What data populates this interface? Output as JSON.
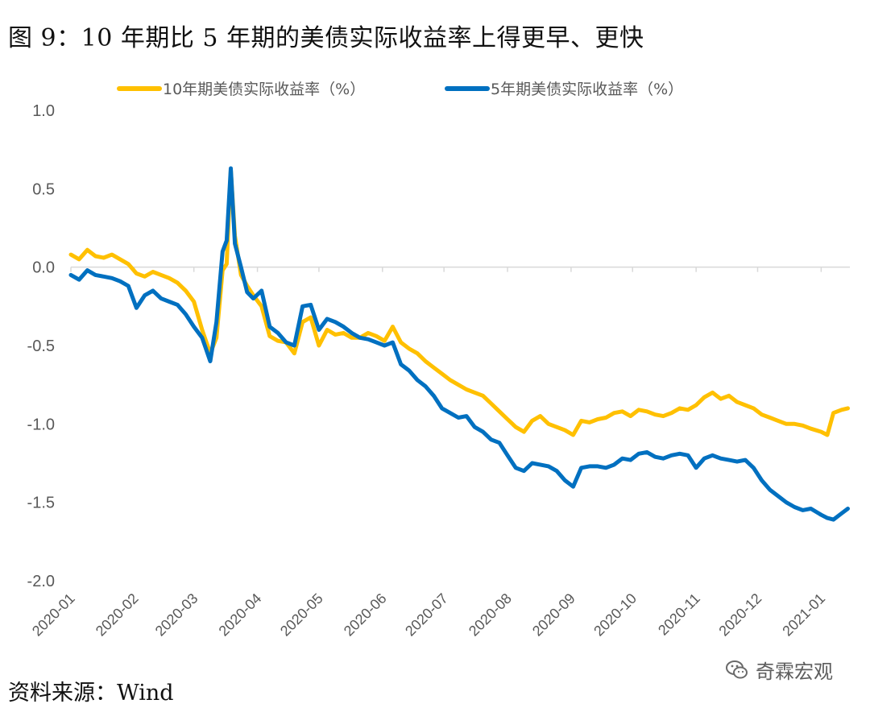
{
  "figure": {
    "title": "图 9：10 年期比 5 年期的美债实际收益率上得更早、更快",
    "source": "资料来源：Wind",
    "watermark": "奇霖宏观",
    "watermark_icon": "wechat-icon"
  },
  "chart_data": {
    "type": "line",
    "title": "",
    "xlabel": "",
    "ylabel": "",
    "ylim": [
      -2.0,
      1.0
    ],
    "yticks": [
      "1.0",
      "0.5",
      "0.0",
      "-0.5",
      "-1.0",
      "-1.5",
      "-2.0"
    ],
    "ytick_values": [
      1.0,
      0.5,
      0.0,
      -0.5,
      -1.0,
      -1.5,
      -2.0
    ],
    "xticks": [
      "2020-01",
      "2020-02",
      "2020-03",
      "2020-04",
      "2020-05",
      "2020-06",
      "2020-07",
      "2020-08",
      "2020-09",
      "2020-10",
      "2020-11",
      "2020-12",
      "2021-01"
    ],
    "xlim": [
      "2020-01-01",
      "2021-01-15"
    ],
    "grid": false,
    "legend_position": "top",
    "series": [
      {
        "name": "10年期美债实际收益率（%）",
        "color": "#FFC000",
        "points": [
          [
            "2020-01-01",
            0.08
          ],
          [
            "2020-01-05",
            0.05
          ],
          [
            "2020-01-09",
            0.11
          ],
          [
            "2020-01-13",
            0.07
          ],
          [
            "2020-01-17",
            0.06
          ],
          [
            "2020-01-21",
            0.08
          ],
          [
            "2020-01-25",
            0.05
          ],
          [
            "2020-01-29",
            0.02
          ],
          [
            "2020-02-02",
            -0.04
          ],
          [
            "2020-02-06",
            -0.06
          ],
          [
            "2020-02-10",
            -0.03
          ],
          [
            "2020-02-14",
            -0.05
          ],
          [
            "2020-02-18",
            -0.07
          ],
          [
            "2020-02-22",
            -0.1
          ],
          [
            "2020-02-26",
            -0.15
          ],
          [
            "2020-03-01",
            -0.22
          ],
          [
            "2020-03-05",
            -0.4
          ],
          [
            "2020-03-09",
            -0.55
          ],
          [
            "2020-03-12",
            -0.45
          ],
          [
            "2020-03-15",
            -0.02
          ],
          [
            "2020-03-17",
            0.02
          ],
          [
            "2020-03-19",
            0.62
          ],
          [
            "2020-03-21",
            0.2
          ],
          [
            "2020-03-24",
            -0.05
          ],
          [
            "2020-03-27",
            -0.12
          ],
          [
            "2020-03-30",
            -0.18
          ],
          [
            "2020-04-03",
            -0.25
          ],
          [
            "2020-04-07",
            -0.44
          ],
          [
            "2020-04-11",
            -0.47
          ],
          [
            "2020-04-15",
            -0.48
          ],
          [
            "2020-04-19",
            -0.55
          ],
          [
            "2020-04-23",
            -0.35
          ],
          [
            "2020-04-27",
            -0.32
          ],
          [
            "2020-05-01",
            -0.5
          ],
          [
            "2020-05-05",
            -0.4
          ],
          [
            "2020-05-09",
            -0.43
          ],
          [
            "2020-05-13",
            -0.42
          ],
          [
            "2020-05-17",
            -0.45
          ],
          [
            "2020-05-21",
            -0.45
          ],
          [
            "2020-05-25",
            -0.42
          ],
          [
            "2020-05-29",
            -0.44
          ],
          [
            "2020-06-02",
            -0.47
          ],
          [
            "2020-06-06",
            -0.38
          ],
          [
            "2020-06-10",
            -0.48
          ],
          [
            "2020-06-14",
            -0.52
          ],
          [
            "2020-06-18",
            -0.55
          ],
          [
            "2020-06-22",
            -0.6
          ],
          [
            "2020-06-26",
            -0.64
          ],
          [
            "2020-06-30",
            -0.68
          ],
          [
            "2020-07-04",
            -0.72
          ],
          [
            "2020-07-08",
            -0.75
          ],
          [
            "2020-07-12",
            -0.78
          ],
          [
            "2020-07-16",
            -0.8
          ],
          [
            "2020-07-20",
            -0.82
          ],
          [
            "2020-07-24",
            -0.87
          ],
          [
            "2020-07-28",
            -0.92
          ],
          [
            "2020-08-01",
            -0.97
          ],
          [
            "2020-08-05",
            -1.02
          ],
          [
            "2020-08-09",
            -1.05
          ],
          [
            "2020-08-13",
            -0.98
          ],
          [
            "2020-08-17",
            -0.95
          ],
          [
            "2020-08-21",
            -1.0
          ],
          [
            "2020-08-25",
            -1.02
          ],
          [
            "2020-08-29",
            -1.04
          ],
          [
            "2020-09-02",
            -1.07
          ],
          [
            "2020-09-06",
            -0.98
          ],
          [
            "2020-09-10",
            -0.99
          ],
          [
            "2020-09-14",
            -0.97
          ],
          [
            "2020-09-18",
            -0.96
          ],
          [
            "2020-09-22",
            -0.93
          ],
          [
            "2020-09-26",
            -0.92
          ],
          [
            "2020-09-30",
            -0.95
          ],
          [
            "2020-10-04",
            -0.91
          ],
          [
            "2020-10-08",
            -0.92
          ],
          [
            "2020-10-12",
            -0.94
          ],
          [
            "2020-10-16",
            -0.95
          ],
          [
            "2020-10-20",
            -0.93
          ],
          [
            "2020-10-24",
            -0.9
          ],
          [
            "2020-10-28",
            -0.91
          ],
          [
            "2020-11-01",
            -0.88
          ],
          [
            "2020-11-05",
            -0.83
          ],
          [
            "2020-11-09",
            -0.8
          ],
          [
            "2020-11-13",
            -0.84
          ],
          [
            "2020-11-17",
            -0.82
          ],
          [
            "2020-11-21",
            -0.86
          ],
          [
            "2020-11-25",
            -0.88
          ],
          [
            "2020-11-29",
            -0.9
          ],
          [
            "2020-12-03",
            -0.94
          ],
          [
            "2020-12-07",
            -0.96
          ],
          [
            "2020-12-11",
            -0.98
          ],
          [
            "2020-12-15",
            -1.0
          ],
          [
            "2020-12-19",
            -1.0
          ],
          [
            "2020-12-23",
            -1.01
          ],
          [
            "2020-12-27",
            -1.03
          ],
          [
            "2021-01-01",
            -1.05
          ],
          [
            "2021-01-04",
            -1.07
          ],
          [
            "2021-01-07",
            -0.93
          ],
          [
            "2021-01-11",
            -0.91
          ],
          [
            "2021-01-14",
            -0.9
          ]
        ]
      },
      {
        "name": "5年期美债实际收益率（%）",
        "color": "#0070C0",
        "points": [
          [
            "2020-01-01",
            -0.05
          ],
          [
            "2020-01-05",
            -0.08
          ],
          [
            "2020-01-09",
            -0.02
          ],
          [
            "2020-01-13",
            -0.05
          ],
          [
            "2020-01-17",
            -0.06
          ],
          [
            "2020-01-21",
            -0.07
          ],
          [
            "2020-01-25",
            -0.09
          ],
          [
            "2020-01-29",
            -0.12
          ],
          [
            "2020-02-02",
            -0.26
          ],
          [
            "2020-02-06",
            -0.18
          ],
          [
            "2020-02-10",
            -0.15
          ],
          [
            "2020-02-14",
            -0.2
          ],
          [
            "2020-02-18",
            -0.22
          ],
          [
            "2020-02-22",
            -0.24
          ],
          [
            "2020-02-26",
            -0.3
          ],
          [
            "2020-03-01",
            -0.38
          ],
          [
            "2020-03-05",
            -0.45
          ],
          [
            "2020-03-09",
            -0.6
          ],
          [
            "2020-03-12",
            -0.35
          ],
          [
            "2020-03-15",
            0.1
          ],
          [
            "2020-03-17",
            0.17
          ],
          [
            "2020-03-19",
            0.63
          ],
          [
            "2020-03-21",
            0.15
          ],
          [
            "2020-03-24",
            0.0
          ],
          [
            "2020-03-27",
            -0.16
          ],
          [
            "2020-03-30",
            -0.2
          ],
          [
            "2020-04-03",
            -0.15
          ],
          [
            "2020-04-07",
            -0.38
          ],
          [
            "2020-04-11",
            -0.42
          ],
          [
            "2020-04-15",
            -0.48
          ],
          [
            "2020-04-19",
            -0.5
          ],
          [
            "2020-04-23",
            -0.25
          ],
          [
            "2020-04-27",
            -0.24
          ],
          [
            "2020-05-01",
            -0.4
          ],
          [
            "2020-05-05",
            -0.33
          ],
          [
            "2020-05-09",
            -0.35
          ],
          [
            "2020-05-13",
            -0.38
          ],
          [
            "2020-05-17",
            -0.42
          ],
          [
            "2020-05-21",
            -0.45
          ],
          [
            "2020-05-25",
            -0.46
          ],
          [
            "2020-05-29",
            -0.48
          ],
          [
            "2020-06-02",
            -0.5
          ],
          [
            "2020-06-06",
            -0.48
          ],
          [
            "2020-06-10",
            -0.62
          ],
          [
            "2020-06-14",
            -0.66
          ],
          [
            "2020-06-18",
            -0.72
          ],
          [
            "2020-06-22",
            -0.76
          ],
          [
            "2020-06-26",
            -0.82
          ],
          [
            "2020-06-30",
            -0.9
          ],
          [
            "2020-07-04",
            -0.93
          ],
          [
            "2020-07-08",
            -0.96
          ],
          [
            "2020-07-12",
            -0.95
          ],
          [
            "2020-07-16",
            -1.02
          ],
          [
            "2020-07-20",
            -1.05
          ],
          [
            "2020-07-24",
            -1.1
          ],
          [
            "2020-07-28",
            -1.12
          ],
          [
            "2020-08-01",
            -1.2
          ],
          [
            "2020-08-05",
            -1.28
          ],
          [
            "2020-08-09",
            -1.3
          ],
          [
            "2020-08-13",
            -1.25
          ],
          [
            "2020-08-17",
            -1.26
          ],
          [
            "2020-08-21",
            -1.27
          ],
          [
            "2020-08-25",
            -1.3
          ],
          [
            "2020-08-29",
            -1.36
          ],
          [
            "2020-09-02",
            -1.4
          ],
          [
            "2020-09-06",
            -1.28
          ],
          [
            "2020-09-10",
            -1.27
          ],
          [
            "2020-09-14",
            -1.27
          ],
          [
            "2020-09-18",
            -1.28
          ],
          [
            "2020-09-22",
            -1.26
          ],
          [
            "2020-09-26",
            -1.22
          ],
          [
            "2020-09-30",
            -1.23
          ],
          [
            "2020-10-04",
            -1.19
          ],
          [
            "2020-10-08",
            -1.18
          ],
          [
            "2020-10-12",
            -1.21
          ],
          [
            "2020-10-16",
            -1.22
          ],
          [
            "2020-10-20",
            -1.2
          ],
          [
            "2020-10-24",
            -1.19
          ],
          [
            "2020-10-28",
            -1.2
          ],
          [
            "2020-11-01",
            -1.28
          ],
          [
            "2020-11-05",
            -1.22
          ],
          [
            "2020-11-09",
            -1.2
          ],
          [
            "2020-11-13",
            -1.22
          ],
          [
            "2020-11-17",
            -1.23
          ],
          [
            "2020-11-21",
            -1.24
          ],
          [
            "2020-11-25",
            -1.23
          ],
          [
            "2020-11-29",
            -1.28
          ],
          [
            "2020-12-03",
            -1.36
          ],
          [
            "2020-12-07",
            -1.42
          ],
          [
            "2020-12-11",
            -1.46
          ],
          [
            "2020-12-15",
            -1.5
          ],
          [
            "2020-12-19",
            -1.53
          ],
          [
            "2020-12-23",
            -1.55
          ],
          [
            "2020-12-27",
            -1.54
          ],
          [
            "2021-01-01",
            -1.58
          ],
          [
            "2021-01-04",
            -1.6
          ],
          [
            "2021-01-07",
            -1.61
          ],
          [
            "2021-01-11",
            -1.57
          ],
          [
            "2021-01-14",
            -1.54
          ]
        ]
      }
    ]
  }
}
